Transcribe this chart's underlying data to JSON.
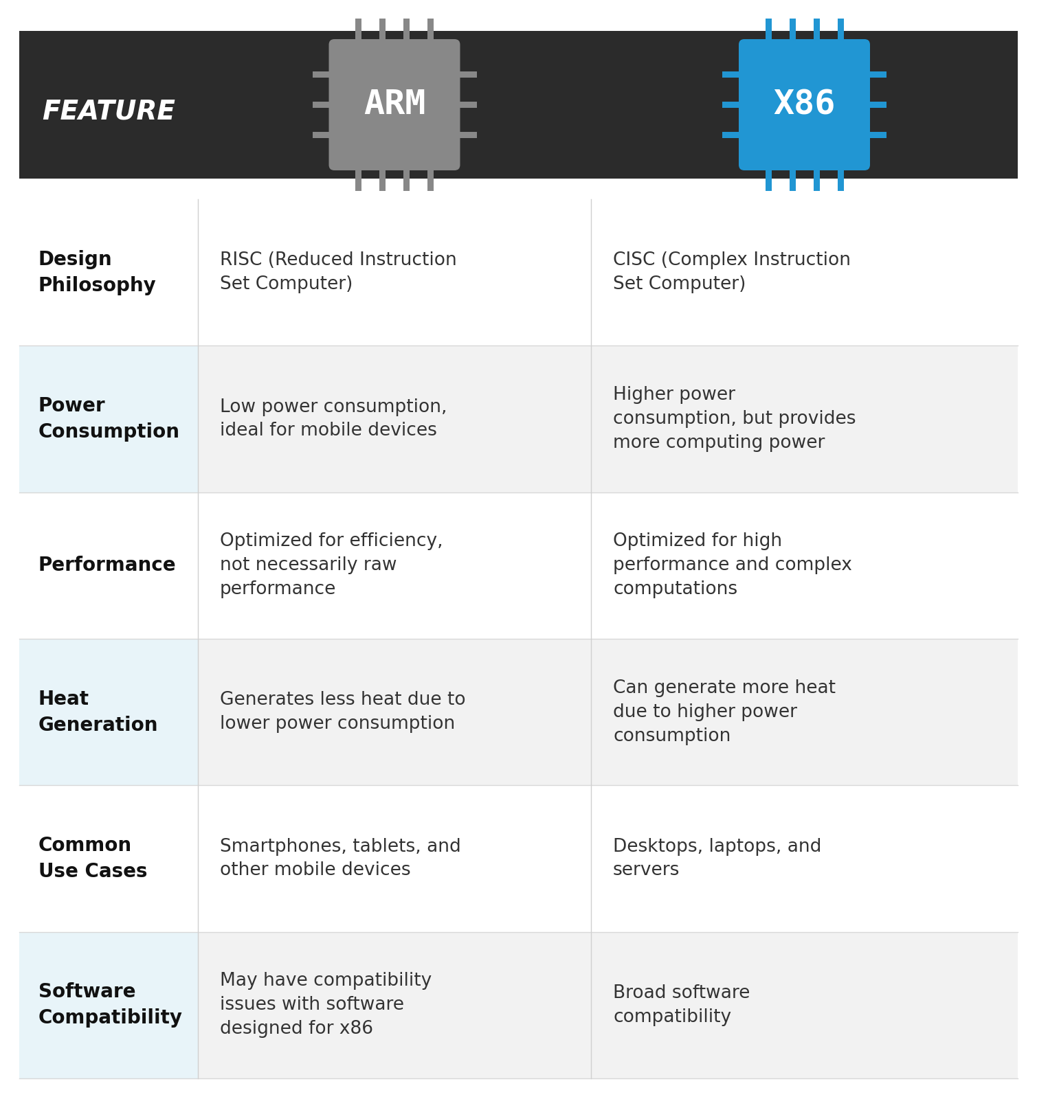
{
  "header_bg": "#2b2b2b",
  "header_feature_text": "FEATURE",
  "header_arm_text": "ARM",
  "header_x86_text": "X86",
  "arm_chip_color": "#888888",
  "x86_chip_color": "#2196d3",
  "white": "#ffffff",
  "bg_color": "#ffffff",
  "row_bg_shaded_feat": "#e8f4f9",
  "row_bg_shaded_cell": "#f2f2f2",
  "row_bg_normal": "#ffffff",
  "feature_bold_color": "#111111",
  "content_color": "#333333",
  "rows": [
    {
      "feature": "Design\nPhilosophy",
      "arm": "RISC (Reduced Instruction\nSet Computer)",
      "x86": "CISC (Complex Instruction\nSet Computer)",
      "shaded": false
    },
    {
      "feature": "Power\nConsumption",
      "arm": "Low power consumption,\nideal for mobile devices",
      "x86": "Higher power\nconsumption, but provides\nmore computing power",
      "shaded": true
    },
    {
      "feature": "Performance",
      "arm": "Optimized for efficiency,\nnot necessarily raw\nperformance",
      "x86": "Optimized for high\nperformance and complex\ncomputations",
      "shaded": false
    },
    {
      "feature": "Heat\nGeneration",
      "arm": "Generates less heat due to\nlower power consumption",
      "x86": "Can generate more heat\ndue to higher power\nconsumption",
      "shaded": true
    },
    {
      "feature": "Common\nUse Cases",
      "arm": "Smartphones, tablets, and\nother mobile devices",
      "x86": "Desktops, laptops, and\nservers",
      "shaded": false
    },
    {
      "feature": "Software\nCompatibility",
      "arm": "May have compatibility\nissues with software\ndesigned for x86",
      "x86": "Broad software\ncompatibility",
      "shaded": true
    }
  ]
}
